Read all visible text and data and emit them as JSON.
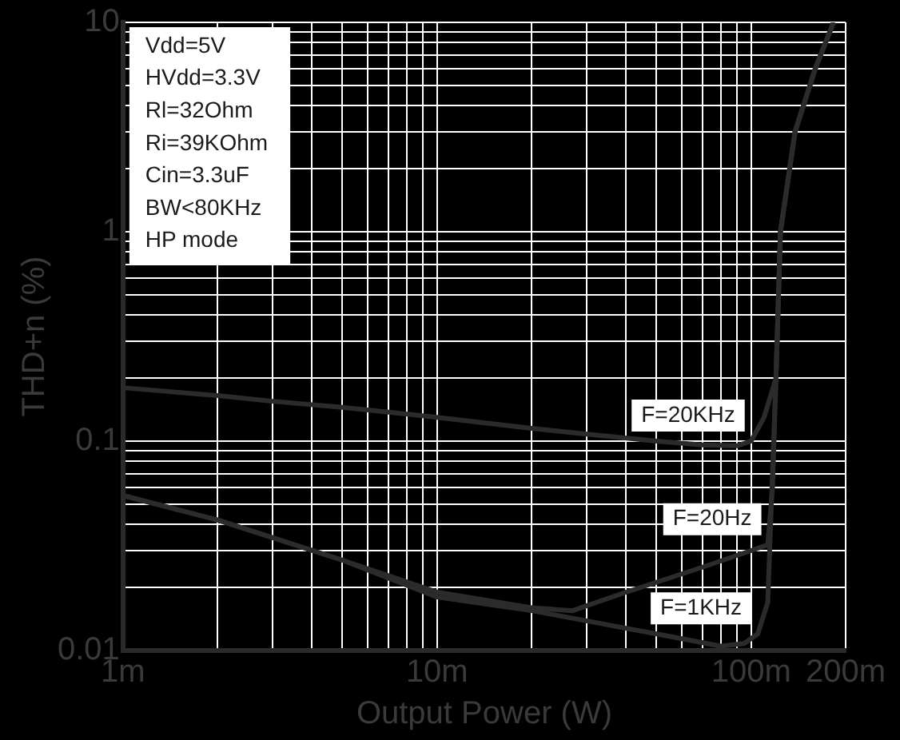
{
  "chart_data": {
    "type": "line",
    "xlabel": "Output Power (W)",
    "ylabel": "THD+n (%)",
    "log": "xy",
    "grid": true,
    "legend": false,
    "marker": "none",
    "line_style": "solid",
    "xlim": [
      1,
      200
    ],
    "xticks": [
      {
        "value": 1,
        "label": "1m"
      },
      {
        "value": 2,
        "label": null
      },
      {
        "value": 3,
        "label": null
      },
      {
        "value": 4,
        "label": null
      },
      {
        "value": 5,
        "label": null
      },
      {
        "value": 6,
        "label": null
      },
      {
        "value": 7,
        "label": null
      },
      {
        "value": 8,
        "label": null
      },
      {
        "value": 9,
        "label": null
      },
      {
        "value": 10,
        "label": "10m"
      },
      {
        "value": 20,
        "label": null
      },
      {
        "value": 30,
        "label": null
      },
      {
        "value": 40,
        "label": null
      },
      {
        "value": 50,
        "label": null
      },
      {
        "value": 60,
        "label": null
      },
      {
        "value": 70,
        "label": null
      },
      {
        "value": 80,
        "label": null
      },
      {
        "value": 90,
        "label": null
      },
      {
        "value": 100,
        "label": "100m"
      },
      {
        "value": 200,
        "label": "200m"
      }
    ],
    "ylim": [
      0.01,
      10
    ],
    "yticks": [
      0.01,
      {
        "value": 0.02,
        "label": null
      },
      {
        "value": 0.03,
        "label": null
      },
      {
        "value": 0.04,
        "label": null
      },
      {
        "value": 0.05,
        "label": null
      },
      {
        "value": 0.06,
        "label": null
      },
      {
        "value": 0.07,
        "label": null
      },
      {
        "value": 0.08,
        "label": null
      },
      {
        "value": 0.09,
        "label": null
      },
      0.1,
      {
        "value": 0.2,
        "label": null
      },
      {
        "value": 0.3,
        "label": null
      },
      {
        "value": 0.4,
        "label": null
      },
      {
        "value": 0.5,
        "label": null
      },
      {
        "value": 0.6,
        "label": null
      },
      {
        "value": 0.7,
        "label": null
      },
      {
        "value": 0.8,
        "label": null
      },
      {
        "value": 0.9,
        "label": null
      },
      1,
      {
        "value": 2,
        "label": null
      },
      {
        "value": 3,
        "label": null
      },
      {
        "value": 4,
        "label": null
      },
      {
        "value": 5,
        "label": null
      },
      {
        "value": 6,
        "label": null
      },
      {
        "value": 7,
        "label": null
      },
      {
        "value": 8,
        "label": null
      },
      {
        "value": 9,
        "label": null
      },
      10
    ],
    "annotations": [
      "Vdd=5V",
      "HVdd=3.3V",
      "Rl=32Ohm",
      "Ri=39KOhm",
      "Cin=3.3uF",
      "BW<80KHz",
      "HP mode"
    ],
    "series": [
      {
        "name": "F=20KHz",
        "color": "#2b2b2b",
        "x": [
          1,
          2,
          3,
          5,
          10,
          20,
          30,
          50,
          70,
          90,
          100,
          110,
          120,
          124,
          138,
          160,
          183
        ],
        "values": [
          0.18,
          0.165,
          0.155,
          0.145,
          0.13,
          0.115,
          0.108,
          0.1,
          0.096,
          0.095,
          0.1,
          0.13,
          0.2,
          1,
          3,
          6,
          10
        ]
      },
      {
        "name": "F=20Hz",
        "color": "#2b2b2b",
        "x": [
          1,
          2,
          5,
          10,
          20,
          27,
          40,
          70,
          100,
          113,
          117,
          120,
          124,
          138,
          160,
          183
        ],
        "values": [
          0.055,
          0.042,
          0.027,
          0.019,
          0.016,
          0.0155,
          0.019,
          0.025,
          0.03,
          0.032,
          0.06,
          0.2,
          1,
          3,
          6,
          10
        ]
      },
      {
        "name": "F=1KHz",
        "color": "#2b2b2b",
        "x": [
          1,
          2,
          5,
          10,
          20,
          50,
          80,
          95,
          105,
          113,
          120,
          124,
          138,
          160,
          183
        ],
        "values": [
          0.055,
          0.042,
          0.027,
          0.018,
          0.0155,
          0.012,
          0.0105,
          0.0108,
          0.012,
          0.017,
          0.2,
          1,
          3,
          6,
          10
        ]
      }
    ]
  }
}
